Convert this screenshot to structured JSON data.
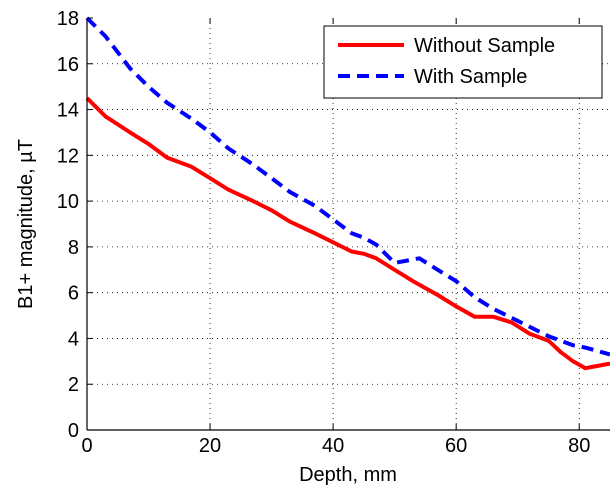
{
  "chart_data": {
    "type": "line",
    "title": "",
    "xlabel": "Depth, mm",
    "ylabel": "B1+ magnitude, µT",
    "xlim": [
      0,
      85
    ],
    "ylim": [
      0,
      18
    ],
    "xticks": [
      0,
      20,
      40,
      60,
      80
    ],
    "yticks": [
      0,
      2,
      4,
      6,
      8,
      10,
      12,
      14,
      16,
      18
    ],
    "grid": true,
    "legend_position": "top-right",
    "series": [
      {
        "name": "Without Sample",
        "color": "#ff0000",
        "dash": "solid",
        "x": [
          0,
          3,
          7,
          10,
          13,
          17,
          20,
          23,
          27,
          30,
          33,
          37,
          40,
          43,
          45,
          47,
          50,
          53,
          57,
          60,
          63,
          66,
          69,
          72,
          75,
          77,
          79,
          81,
          83,
          85
        ],
        "y": [
          14.5,
          13.7,
          13.0,
          12.5,
          11.9,
          11.5,
          11.0,
          10.5,
          10.0,
          9.6,
          9.1,
          8.6,
          8.2,
          7.8,
          7.7,
          7.5,
          7.0,
          6.5,
          5.9,
          5.4,
          4.95,
          4.95,
          4.7,
          4.2,
          3.9,
          3.4,
          3.0,
          2.7,
          2.8,
          2.9
        ]
      },
      {
        "name": "With Sample",
        "color": "#0000ff",
        "dash": "dashed",
        "x": [
          0,
          3,
          7,
          10,
          13,
          17,
          20,
          23,
          27,
          30,
          33,
          37,
          40,
          43,
          45,
          47,
          50,
          52,
          54,
          57,
          60,
          63,
          66,
          69,
          72,
          75,
          77,
          79,
          81,
          85
        ],
        "y": [
          18.0,
          17.2,
          15.8,
          15.0,
          14.3,
          13.6,
          13.0,
          12.3,
          11.6,
          11.0,
          10.4,
          9.8,
          9.2,
          8.6,
          8.4,
          8.1,
          7.3,
          7.4,
          7.5,
          7.0,
          6.5,
          5.8,
          5.3,
          4.9,
          4.5,
          4.1,
          3.9,
          3.7,
          3.6,
          3.3
        ]
      }
    ]
  }
}
